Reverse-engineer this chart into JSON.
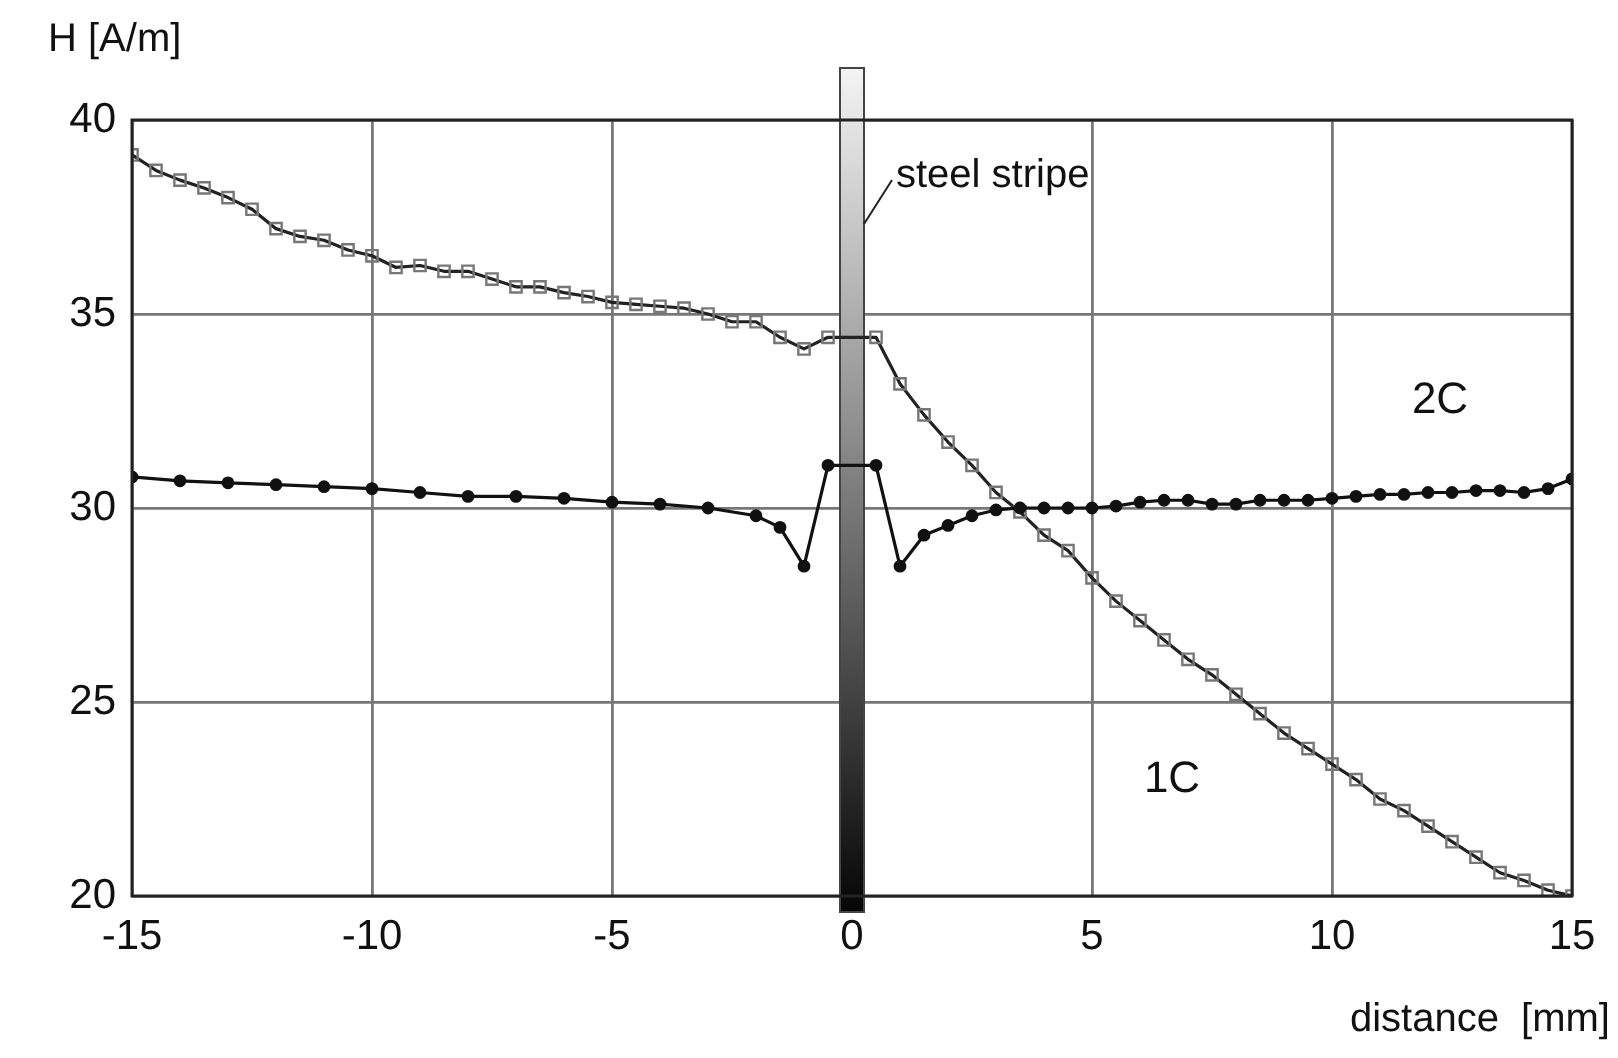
{
  "chart_data": {
    "type": "line",
    "xlabel": "distance  [mm]",
    "ylabel": "H [A/m]",
    "xlim": [
      -15,
      15
    ],
    "xticks": [
      -15,
      -10,
      -5,
      0,
      5,
      10,
      15
    ],
    "ylim": [
      20,
      40
    ],
    "yticks": [
      20,
      25,
      30,
      35,
      40
    ],
    "grid": true,
    "legend": false,
    "line_style": "solid",
    "series": [
      {
        "name": "1C",
        "color": "#222222",
        "marker": "square",
        "x": [
          -15,
          -14.5,
          -14,
          -13.5,
          -13,
          -12.5,
          -12,
          -11.5,
          -11,
          -10.5,
          -10,
          -9.5,
          -9,
          -8.5,
          -8,
          -7.5,
          -7,
          -6.5,
          -6,
          -5.5,
          -5,
          -4.5,
          -4,
          -3.5,
          -3,
          -2.5,
          -2,
          -1.5,
          -1,
          -0.5,
          0.5,
          1,
          1.5,
          2,
          2.5,
          3,
          3.5,
          4,
          4.5,
          5,
          5.5,
          6,
          6.5,
          7,
          7.5,
          8,
          8.5,
          9,
          9.5,
          10,
          10.5,
          11,
          11.5,
          12,
          12.5,
          13,
          13.5,
          14,
          14.5,
          15
        ],
        "values": [
          39.1,
          38.7,
          38.45,
          38.25,
          38.0,
          37.7,
          37.2,
          37.0,
          36.9,
          36.65,
          36.5,
          36.2,
          36.25,
          36.1,
          36.1,
          35.9,
          35.7,
          35.7,
          35.55,
          35.45,
          35.3,
          35.25,
          35.2,
          35.15,
          35.0,
          34.8,
          34.8,
          34.4,
          34.1,
          34.4,
          34.4,
          33.2,
          32.4,
          31.7,
          31.1,
          30.4,
          29.9,
          29.3,
          28.9,
          28.2,
          27.6,
          27.1,
          26.6,
          26.1,
          25.7,
          25.2,
          24.7,
          24.2,
          23.8,
          23.4,
          23.0,
          22.5,
          22.2,
          21.8,
          21.4,
          21.0,
          20.6,
          20.4,
          20.15,
          20.0
        ]
      },
      {
        "name": "2C",
        "color": "#111111",
        "marker": "circle",
        "x": [
          -15,
          -14,
          -13,
          -12,
          -11,
          -10,
          -9,
          -8,
          -7,
          -6,
          -5,
          -4,
          -3,
          -2,
          -1.5,
          -1,
          -0.5,
          0.5,
          1,
          1.5,
          2,
          2.5,
          3,
          3.5,
          4,
          4.5,
          5,
          5.5,
          6,
          6.5,
          7,
          7.5,
          8,
          8.5,
          9,
          9.5,
          10,
          10.5,
          11,
          11.5,
          12,
          12.5,
          13,
          13.5,
          14,
          14.5,
          15
        ],
        "values": [
          30.8,
          30.7,
          30.65,
          30.6,
          30.55,
          30.5,
          30.4,
          30.3,
          30.3,
          30.25,
          30.15,
          30.1,
          30.0,
          29.8,
          29.5,
          28.5,
          31.1,
          31.1,
          28.5,
          29.3,
          29.55,
          29.8,
          29.95,
          30.0,
          30.0,
          30.0,
          30.0,
          30.05,
          30.15,
          30.2,
          30.2,
          30.1,
          30.1,
          30.2,
          30.2,
          30.2,
          30.25,
          30.3,
          30.35,
          30.35,
          30.4,
          30.4,
          30.45,
          30.45,
          30.4,
          30.5,
          30.75
        ]
      }
    ],
    "bands": [
      {
        "axis": "x",
        "from": -0.25,
        "to": 0.25,
        "label": "steel stripe"
      }
    ]
  }
}
